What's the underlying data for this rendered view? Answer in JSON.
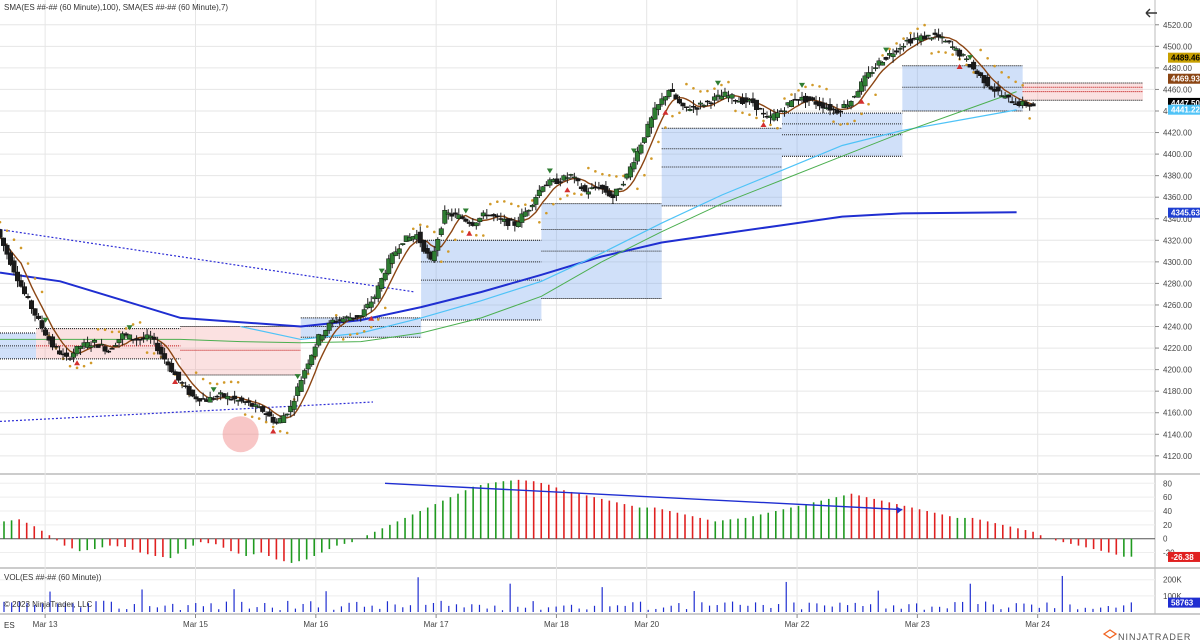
{
  "chart_data": {
    "type": "candlestick",
    "header": {
      "indicators_label": "SMA(ES ##-## (60 Minute),100), SMA(ES ##-## (60 Minute),7)",
      "symbol": "ES",
      "copyright": "© 2023 NinjaTrader, LLC",
      "brand": "NINJATRADER"
    },
    "price_panel": {
      "ylim": [
        4105,
        4530
      ],
      "yticks": [
        4120,
        4140,
        4160,
        4180,
        4200,
        4220,
        4240,
        4260,
        4280,
        4300,
        4320,
        4340,
        4360,
        4380,
        4400,
        4420,
        4440,
        4460,
        4480,
        4500,
        4520
      ],
      "price_tags": [
        {
          "value": 4489.46,
          "label": "4489.46",
          "color": "#c8a000",
          "text_color": "#000000"
        },
        {
          "value": 4469.93,
          "label": "4469.93",
          "color": "#8b4513",
          "text_color": "#ffffff"
        },
        {
          "value": 4447.5,
          "label": "4447.50",
          "color": "#000000",
          "text_color": "#ffffff"
        },
        {
          "value": 4441.2,
          "label": "4441.22",
          "color": "#4fc3f7",
          "text_color": "#ffffff"
        },
        {
          "value": 4345.63,
          "label": "4345.63",
          "color": "#1f3fd1",
          "text_color": "#ffffff"
        }
      ]
    },
    "x_axis": {
      "labels": [
        "Mar 13",
        "Mar 15",
        "Mar 16",
        "Mar 17",
        "Mar 18",
        "Mar 20",
        "Mar 22",
        "Mar 23",
        "Mar 24"
      ],
      "positions": [
        1.5,
        6.5,
        10.5,
        14.5,
        18.5,
        21.5,
        26.5,
        30.5,
        34.5
      ]
    },
    "candles": {
      "x_start": 0,
      "path": [
        4330,
        4300,
        4270,
        4245,
        4222,
        4210,
        4222,
        4225,
        4218,
        4232,
        4228,
        4230,
        4210,
        4190,
        4175,
        4172,
        4176,
        4172,
        4168,
        4162,
        4150,
        4165,
        4200,
        4230,
        4245,
        4248,
        4250,
        4268,
        4300,
        4320,
        4325,
        4300,
        4345,
        4342,
        4336,
        4345,
        4338,
        4335,
        4350,
        4372,
        4375,
        4380,
        4365,
        4370,
        4360,
        4380,
        4410,
        4440,
        4460,
        4442,
        4444,
        4450,
        4455,
        4450,
        4448,
        4432,
        4440,
        4452,
        4450,
        4445,
        4440,
        4450,
        4470,
        4485,
        4495,
        4505,
        4508,
        4510,
        4502,
        4490,
        4475,
        4462,
        4452,
        4447
      ]
    },
    "sma_100": [
      [
        0,
        4228
      ],
      [
        4,
        4228
      ],
      [
        6,
        4228
      ],
      [
        8,
        4226
      ],
      [
        10,
        4225
      ],
      [
        12,
        4226
      ],
      [
        14,
        4234
      ],
      [
        16,
        4248
      ],
      [
        18,
        4268
      ],
      [
        20,
        4300
      ],
      [
        22,
        4328
      ],
      [
        24,
        4354
      ],
      [
        26,
        4376
      ],
      [
        28,
        4398
      ],
      [
        30,
        4420
      ],
      [
        32,
        4440
      ],
      [
        33.8,
        4458
      ]
    ],
    "sma_7_mode": "smoothed-close",
    "light_blue_line": [
      [
        8,
        4240
      ],
      [
        10,
        4228
      ],
      [
        12,
        4234
      ],
      [
        14,
        4248
      ],
      [
        16,
        4264
      ],
      [
        18,
        4282
      ],
      [
        20,
        4308
      ],
      [
        22,
        4336
      ],
      [
        24,
        4362
      ],
      [
        26,
        4385
      ],
      [
        28,
        4408
      ],
      [
        30,
        4422
      ],
      [
        32,
        4432
      ],
      [
        33.8,
        4441
      ]
    ],
    "blue_trend_line": [
      [
        0,
        4290
      ],
      [
        2,
        4282
      ],
      [
        4,
        4265
      ],
      [
        6,
        4248
      ],
      [
        8,
        4244
      ],
      [
        10,
        4240
      ],
      [
        12,
        4246
      ],
      [
        14,
        4258
      ],
      [
        16,
        4272
      ],
      [
        18,
        4288
      ],
      [
        20,
        4305
      ],
      [
        22,
        4318
      ],
      [
        24,
        4326
      ],
      [
        26,
        4334
      ],
      [
        28,
        4342
      ],
      [
        30,
        4345
      ],
      [
        33.8,
        4346
      ]
    ],
    "dotted_trendlines": [
      {
        "from": [
          0,
          4330
        ],
        "to": [
          13.8,
          4272
        ]
      },
      {
        "from": [
          0,
          4152
        ],
        "to": [
          12.4,
          4170
        ]
      }
    ],
    "blue_boxes": [
      {
        "x0": 0,
        "x1": 1.2,
        "y0": 4210,
        "y1": 4234,
        "lines": [
          4222
        ]
      },
      {
        "x0": 10,
        "x1": 14,
        "y0": 4230,
        "y1": 4248,
        "lines": [
          4240
        ]
      },
      {
        "x0": 14,
        "x1": 18,
        "y0": 4246,
        "y1": 4320,
        "lines": [
          4283,
          4300
        ]
      },
      {
        "x0": 18,
        "x1": 22,
        "y0": 4266,
        "y1": 4354,
        "lines": [
          4310,
          4330
        ]
      },
      {
        "x0": 22,
        "x1": 26,
        "y0": 4352,
        "y1": 4424,
        "lines": [
          4388,
          4405
        ]
      },
      {
        "x0": 26,
        "x1": 30,
        "y0": 4398,
        "y1": 4438,
        "lines": [
          4418,
          4428
        ]
      },
      {
        "x0": 30,
        "x1": 34,
        "y0": 4440,
        "y1": 4482,
        "lines": [
          4462
        ]
      }
    ],
    "red_boxes": [
      {
        "x0": 1.2,
        "x1": 6,
        "y0": 4210,
        "y1": 4238,
        "lines": [
          4222
        ]
      },
      {
        "x0": 6,
        "x1": 10,
        "y0": 4195,
        "y1": 4240,
        "lines": [
          4218
        ]
      },
      {
        "x0": 34,
        "x1": 38,
        "y0": 4450,
        "y1": 4466,
        "lines": [
          4458,
          4462
        ]
      }
    ],
    "highlight_circle": {
      "x": 8,
      "y": 4140
    },
    "oscillator_panel": {
      "ylim": [
        -38,
        92
      ],
      "yticks": [
        -20,
        0,
        20,
        40,
        60,
        80
      ],
      "last_value_label": "-26.38",
      "divergence_line": {
        "from": [
          12.8,
          80
        ],
        "to": [
          30,
          42
        ]
      },
      "values": [
        25,
        28,
        18,
        5,
        -10,
        -18,
        -15,
        -10,
        -12,
        -20,
        -25,
        -28,
        -15,
        -5,
        -8,
        -18,
        -25,
        -20,
        -30,
        -35,
        -30,
        -20,
        -10,
        -5,
        5,
        15,
        25,
        35,
        45,
        55,
        65,
        75,
        80,
        83,
        85,
        83,
        78,
        70,
        65,
        60,
        55,
        50,
        45,
        45,
        40,
        35,
        30,
        25,
        28,
        30,
        35,
        40,
        45,
        50,
        55,
        60,
        65,
        60,
        55,
        50,
        45,
        40,
        35,
        30,
        30,
        25,
        20,
        15,
        10,
        0,
        -5,
        -10,
        -15,
        -20,
        -26
      ]
    },
    "volume_panel": {
      "ylim": [
        0,
        260
      ],
      "yticks": [
        100,
        200
      ],
      "ytick_labels": [
        "100K",
        "200K"
      ],
      "title": "VOL(ES ##-## (60 Minute))",
      "last_value_label": "58763"
    }
  }
}
